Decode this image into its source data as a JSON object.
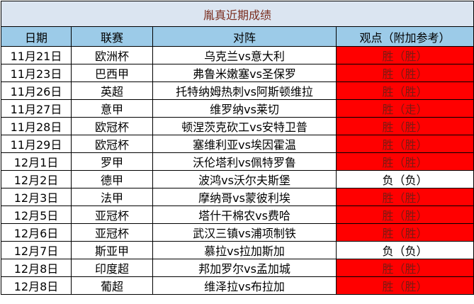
{
  "sheet": {
    "title": "胤真近期成绩",
    "headers": {
      "date": "日期",
      "league": "联赛",
      "match": "对阵",
      "view": "观点（附加参考）"
    },
    "colors": {
      "title_bg": "#dbe5f1",
      "header_bg": "#9ccbe8",
      "win_bg": "#ff0000",
      "win_text": "#7a1a12"
    },
    "rows": [
      {
        "date": "11月21日",
        "league": "欧洲杯",
        "match": "乌克兰vs意大利",
        "view": "胜（胜）",
        "result": "win"
      },
      {
        "date": "11月23日",
        "league": "巴西甲",
        "match": "弗鲁米嫩塞vs圣保罗",
        "view": "胜（胜）",
        "result": "win"
      },
      {
        "date": "11月26日",
        "league": "英超",
        "match": "托特纳姆热刺vs阿斯顿维拉",
        "view": "胜（胜）",
        "result": "win"
      },
      {
        "date": "11月27日",
        "league": "意甲",
        "match": "维罗纳vs莱切",
        "view": "胜（走）",
        "result": "win"
      },
      {
        "date": "11月28日",
        "league": "欧冠杯",
        "match": "顿涅茨克砍工vs安特卫普",
        "view": "胜（胜）",
        "result": "win"
      },
      {
        "date": "11月29日",
        "league": "欧冠杯",
        "match": "塞维利亚vs埃因霍温",
        "view": "胜（胜）",
        "result": "win"
      },
      {
        "date": "12月1日",
        "league": "罗甲",
        "match": "沃伦塔利vs佩特罗鲁",
        "view": "胜（胜）",
        "result": "win"
      },
      {
        "date": "12月2日",
        "league": "德甲",
        "match": "波鸿vs沃尔夫斯堡",
        "view": "负（负）",
        "result": "loss"
      },
      {
        "date": "12月3日",
        "league": "法甲",
        "match": "摩纳哥vs蒙彼利埃",
        "view": "胜（胜）",
        "result": "win"
      },
      {
        "date": "12月5日",
        "league": "亚冠杯",
        "match": "塔什干棉农vs费哈",
        "view": "胜（胜）",
        "result": "win"
      },
      {
        "date": "12月6日",
        "league": "亚冠杯",
        "match": "武汉三镇vs浦项制铁",
        "view": "胜（胜）",
        "result": "win"
      },
      {
        "date": "12月7日",
        "league": "斯亚甲",
        "match": "慕拉vs拉加斯加",
        "view": "负（负）",
        "result": "loss"
      },
      {
        "date": "12月8日",
        "league": "印度超",
        "match": "邦加罗尔vs孟加城",
        "view": "胜（胜）",
        "result": "win"
      },
      {
        "date": "12月8日",
        "league": "葡超",
        "match": "维泽拉vs布拉加",
        "view": "胜（胜）",
        "result": "win"
      }
    ]
  }
}
